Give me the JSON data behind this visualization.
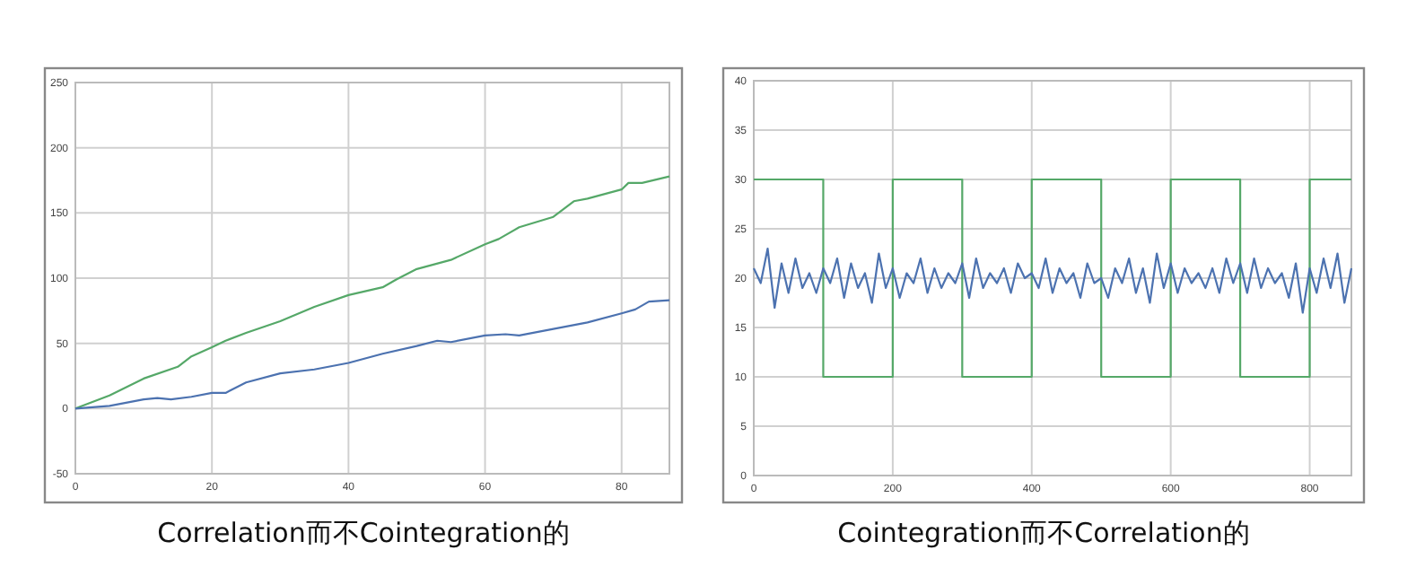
{
  "chart_data": [
    {
      "type": "line",
      "title": "Correlation而不Cointegration的",
      "xlim": [
        0,
        87
      ],
      "xticks": [
        0,
        20,
        40,
        60,
        80
      ],
      "ylim": [
        -50,
        250
      ],
      "yticks": [
        -50,
        0,
        50,
        100,
        150,
        200,
        250
      ],
      "grid": true,
      "series": [
        {
          "color": "#55a868",
          "x": [
            0,
            5,
            10,
            15,
            17,
            20,
            22,
            25,
            30,
            35,
            40,
            45,
            47,
            50,
            55,
            60,
            62,
            65,
            70,
            73,
            75,
            80,
            81,
            83,
            87
          ],
          "values": [
            0,
            10,
            23,
            32,
            40,
            47,
            52,
            58,
            67,
            78,
            87,
            93,
            99,
            107,
            114,
            126,
            130,
            139,
            147,
            159,
            161,
            168,
            173,
            173,
            178
          ]
        },
        {
          "color": "#4c72b0",
          "x": [
            0,
            5,
            10,
            12,
            14,
            17,
            20,
            22,
            25,
            30,
            35,
            40,
            45,
            50,
            53,
            55,
            60,
            63,
            65,
            70,
            75,
            80,
            82,
            84,
            87
          ],
          "values": [
            0,
            2,
            7,
            8,
            7,
            9,
            12,
            12,
            20,
            27,
            30,
            35,
            42,
            48,
            52,
            51,
            56,
            57,
            56,
            61,
            66,
            73,
            76,
            82,
            83
          ]
        }
      ]
    },
    {
      "type": "line",
      "title": "Cointegration而不Correlation的",
      "xlim": [
        0,
        860
      ],
      "xticks": [
        0,
        200,
        400,
        600,
        800
      ],
      "ylim": [
        0,
        40
      ],
      "yticks": [
        0,
        5,
        10,
        15,
        20,
        25,
        30,
        35,
        40
      ],
      "grid": true,
      "series": [
        {
          "type": "step",
          "color": "#55a868",
          "x": [
            0,
            100,
            200,
            300,
            400,
            500,
            600,
            700,
            800,
            860
          ],
          "values": [
            30,
            10,
            30,
            10,
            30,
            10,
            30,
            10,
            30,
            30
          ]
        },
        {
          "color": "#4c72b0",
          "x": [
            0,
            10,
            20,
            30,
            40,
            50,
            60,
            70,
            80,
            90,
            100,
            110,
            120,
            130,
            140,
            150,
            160,
            170,
            180,
            190,
            200,
            210,
            220,
            230,
            240,
            250,
            260,
            270,
            280,
            290,
            300,
            310,
            320,
            330,
            340,
            350,
            360,
            370,
            380,
            390,
            400,
            410,
            420,
            430,
            440,
            450,
            460,
            470,
            480,
            490,
            500,
            510,
            520,
            530,
            540,
            550,
            560,
            570,
            580,
            590,
            600,
            610,
            620,
            630,
            640,
            650,
            660,
            670,
            680,
            690,
            700,
            710,
            720,
            730,
            740,
            750,
            760,
            770,
            780,
            790,
            800,
            810,
            820,
            830,
            840,
            850,
            860
          ],
          "values": [
            21,
            19.5,
            23,
            17,
            21.5,
            18.5,
            22,
            19,
            20.5,
            18.5,
            21,
            19.5,
            22,
            18,
            21.5,
            19,
            20.5,
            17.5,
            22.5,
            19,
            21,
            18,
            20.5,
            19.5,
            22,
            18.5,
            21,
            19,
            20.5,
            19.5,
            21.5,
            18,
            22,
            19,
            20.5,
            19.5,
            21,
            18.5,
            21.5,
            20,
            20.5,
            19,
            22,
            18.5,
            21,
            19.5,
            20.5,
            18,
            21.5,
            19.5,
            20,
            18,
            21,
            19.5,
            22,
            18.5,
            21,
            17.5,
            22.5,
            19,
            21.5,
            18.5,
            21,
            19.5,
            20.5,
            19,
            21,
            18.5,
            22,
            19.5,
            21.5,
            18.5,
            22,
            19,
            21,
            19.5,
            20.5,
            18,
            21.5,
            16.5,
            21,
            18.5,
            22,
            19,
            22.5,
            17.5,
            21
          ]
        }
      ]
    }
  ]
}
